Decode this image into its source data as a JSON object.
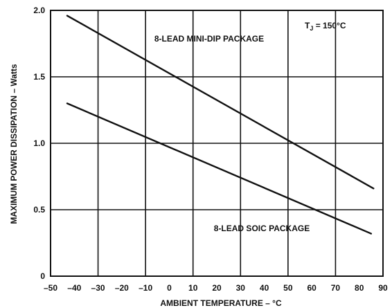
{
  "chart_data": {
    "type": "line",
    "xlabel": "AMBIENT TEMPERATURE – °C",
    "ylabel": "MAXIMUM POWER DISSIPATION – Watts",
    "xlim": [
      -50,
      90
    ],
    "ylim": [
      0,
      2.0
    ],
    "x_ticks": [
      -50,
      -40,
      -30,
      -20,
      -10,
      0,
      10,
      20,
      30,
      40,
      50,
      60,
      70,
      80,
      90
    ],
    "x_tick_labels": [
      "–50",
      "–40",
      "–30",
      "–20",
      "–10",
      "0",
      "10",
      "20",
      "30",
      "40",
      "50",
      "60",
      "70",
      "80",
      "90"
    ],
    "y_ticks": [
      0,
      0.5,
      1.0,
      1.5,
      2.0
    ],
    "y_tick_labels": [
      "0",
      "0.5",
      "1.0",
      "1.5",
      "2.0"
    ],
    "grid": true,
    "series": [
      {
        "name": "8-LEAD MINI-DIP PACKAGE",
        "x": [
          -43,
          86
        ],
        "y": [
          1.96,
          0.66
        ]
      },
      {
        "name": "8-LEAD SOIC PACKAGE",
        "x": [
          -43,
          85
        ],
        "y": [
          1.3,
          0.32
        ]
      }
    ],
    "annotations": {
      "tj_prefix": "T",
      "tj_sub": "J",
      "tj_value": " = 150°C"
    }
  }
}
